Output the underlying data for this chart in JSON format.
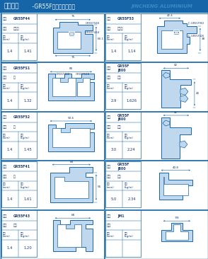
{
  "title_bold": "平开系列",
  "title_sub": " -GR55F隔热平开型材图",
  "title_watermark": "JINCHENG ALUMINIUM",
  "title_bg": "#1565a8",
  "bg_color": "#d8e8f4",
  "cell_bg": "#e8f2fa",
  "border_color": "#1565a8",
  "profile_color": "#1565a8",
  "profile_fill": "#c0d8ee",
  "dim_color": "#1565a8",
  "text_color": "#1a3a6b",
  "rows": [
    {
      "left": {
        "model": "GR55F44",
        "name": "外平框",
        "thick": "1.4",
        "weight": "1.41",
        "ptype": "r0_left"
      },
      "right": {
        "model": "GR55F53",
        "name": "内平框",
        "thick": "1.4",
        "weight": "1.14",
        "ptype": "r0_right"
      }
    },
    {
      "left": {
        "model": "GR55FS1",
        "name": "框",
        "thick": "1.4",
        "weight": "1.32",
        "ptype": "r1_left"
      },
      "right": {
        "model": "GR55F\nJ800",
        "name": "适胶",
        "thick": "2.9",
        "weight": "1.626",
        "ptype": "r1_right"
      }
    },
    {
      "left": {
        "model": "GR55F52",
        "name": "框",
        "thick": "1.4",
        "weight": "1.45",
        "ptype": "r2_left"
      },
      "right": {
        "model": "GR55F\nJ800",
        "name": "适胶",
        "thick": "3.0",
        "weight": "2.24",
        "ptype": "r2_right"
      }
    },
    {
      "left": {
        "model": "GR55F41",
        "name": "扇",
        "thick": "1.4",
        "weight": "1.61",
        "ptype": "r3_left"
      },
      "right": {
        "model": "GR55F\nJ800",
        "name": "适胶",
        "thick": "5.0",
        "weight": "2.34",
        "ptype": "r3_right"
      }
    },
    {
      "left": {
        "model": "GR55F43",
        "name": "拼框",
        "thick": "1.4",
        "weight": "1.20",
        "ptype": "r4_left"
      },
      "right": {
        "model": "JM1",
        "name": "",
        "thick": "",
        "weight": "",
        "ptype": "r4_right"
      }
    }
  ]
}
